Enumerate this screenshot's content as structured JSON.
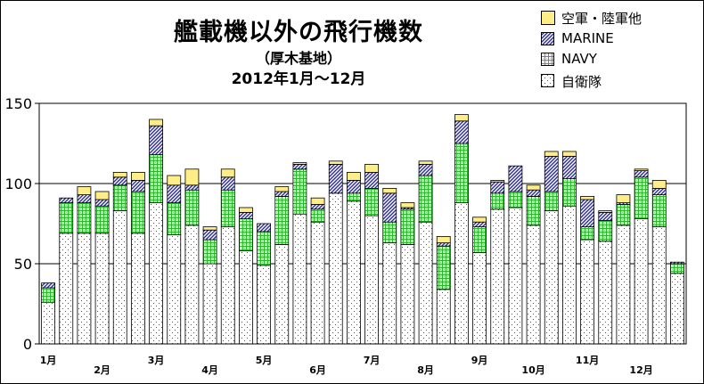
{
  "title": {
    "line1": "艦載機以外の飛行機数",
    "line2": "（厚木基地）",
    "line3": "2012年1月～12月"
  },
  "legend": [
    {
      "key": "other",
      "label": "空軍・陸軍他"
    },
    {
      "key": "marine",
      "label": "MARINE"
    },
    {
      "key": "navy",
      "label": "NAVY"
    },
    {
      "key": "self",
      "label": "自衛隊"
    }
  ],
  "chart_data": {
    "type": "bar",
    "stacked": true,
    "ylim": [
      0,
      150
    ],
    "yticks": [
      0,
      50,
      100,
      150
    ],
    "grid": true,
    "legend_position": "top-right",
    "month_labels": [
      "1月",
      "2月",
      "3月",
      "4月",
      "5月",
      "6月",
      "7月",
      "8月",
      "9月",
      "10月",
      "11月",
      "12月"
    ],
    "month_label_bar_index": [
      0,
      3,
      6,
      9,
      12,
      15,
      18,
      21,
      24,
      27,
      30,
      33
    ],
    "colors": {
      "self": "#ffffff",
      "navy": "#33cc33",
      "marine": "#3333aa",
      "other": "#ffee88"
    },
    "series": [
      {
        "key": "self",
        "name": "自衛隊",
        "values": [
          26,
          69,
          69,
          69,
          83,
          69,
          88,
          68,
          74,
          50,
          73,
          58,
          49,
          62,
          81,
          76,
          94,
          89,
          80,
          63,
          62,
          76,
          34,
          88,
          57,
          84,
          85,
          74,
          83,
          86,
          65,
          64,
          74,
          78,
          73,
          44
        ]
      },
      {
        "key": "navy",
        "name": "NAVY",
        "values": [
          9,
          19,
          19,
          17,
          16,
          26,
          30,
          20,
          22,
          15,
          23,
          20,
          21,
          30,
          28,
          8,
          0,
          5,
          17,
          13,
          22,
          29,
          27,
          37,
          16,
          10,
          10,
          18,
          12,
          17,
          8,
          13,
          13,
          26,
          20,
          6
        ]
      },
      {
        "key": "marine",
        "name": "MARINE",
        "values": [
          3,
          3,
          5,
          4,
          5,
          7,
          18,
          11,
          3,
          6,
          8,
          4,
          5,
          3,
          3,
          3,
          18,
          8,
          10,
          18,
          1,
          7,
          2,
          14,
          3,
          7,
          16,
          4,
          22,
          14,
          17,
          5,
          1,
          4,
          4,
          1
        ]
      },
      {
        "key": "other",
        "name": "空軍・陸軍他",
        "values": [
          0,
          0,
          5,
          5,
          3,
          5,
          4,
          6,
          10,
          2,
          5,
          3,
          0,
          3,
          1,
          4,
          2,
          5,
          5,
          3,
          3,
          2,
          4,
          4,
          3,
          1,
          0,
          3,
          3,
          3,
          2,
          1,
          5,
          1,
          5,
          0
        ]
      }
    ]
  }
}
